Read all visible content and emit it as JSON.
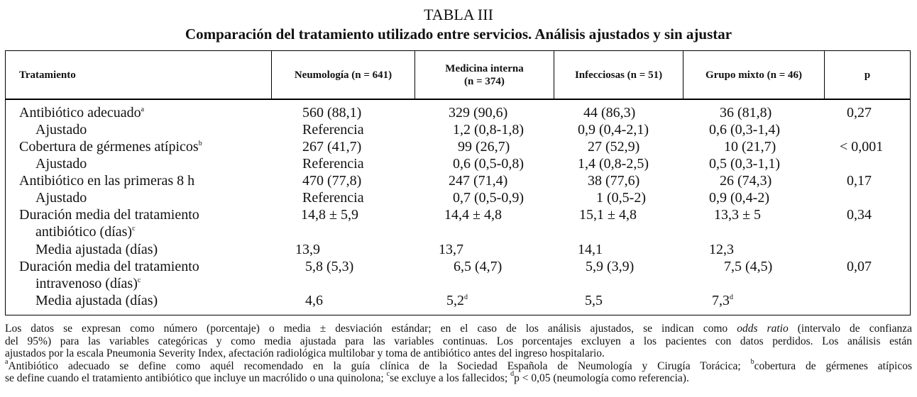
{
  "caption": {
    "number": "TABLA III",
    "title": "Comparación del tratamiento utilizado entre servicios. Análisis ajustados y sin ajustar"
  },
  "headers": {
    "treatment": "Tratamiento",
    "neumologia": "Neumología (n = 641)",
    "medicina_l1": "Medicina interna",
    "medicina_l2": "(n = 374)",
    "infecciosas": "Infecciosas (n = 51)",
    "mixto": "Grupo mixto (n = 46)",
    "p": "p"
  },
  "rows": [
    {
      "label": "Antibiótico adecuado",
      "sup": "a",
      "c1": "560 (88,1)",
      "c2": "329 (90,6)",
      "c3": "44 (86,3)",
      "c4": "36 (81,8)",
      "p": "0,27"
    },
    {
      "label": "Ajustado",
      "c1": "Referencia",
      "c2": "1,2 (0,8-1,8)",
      "c3": "0,9 (0,4-2,1)",
      "c4": "0,6 (0,3-1,4)",
      "p": ""
    },
    {
      "label": "Cobertura de gérmenes atípicos",
      "sup": "b",
      "c1": "267 (41,7)",
      "c2": "99 (26,7)",
      "c3": "27 (52,9)",
      "c4": "10 (21,7)",
      "p": "< 0,001"
    },
    {
      "label": "Ajustado",
      "c1": "Referencia",
      "c2": "0,6 (0,5-0,8)",
      "c3": "1,4 (0,8-2,5)",
      "c4": "0,5 (0,3-1,1)",
      "p": ""
    },
    {
      "label": "Antibiótico en las primeras 8 h",
      "c1": "470 (77,8)",
      "c2": "247 (71,4)",
      "c3": "38 (77,6)",
      "c4": "26 (74,3)",
      "p": "0,17"
    },
    {
      "label": "Ajustado",
      "c1": "Referencia",
      "c2": "0,7 (0,5-0,9)",
      "c3": "1 (0,5-2)",
      "c4": "0,9 (0,4-2)",
      "p": ""
    },
    {
      "label": "Duración media del tratamiento",
      "label2": "antibiótico (días)",
      "sup": "c",
      "c1": "14,8 ± 5,9",
      "c2": "14,4 ± 4,8",
      "c3": "15,1 ± 4,8",
      "c4": "13,3 ± 5",
      "p": "0,34"
    },
    {
      "label": "Media ajustada (días)",
      "c1": "13,9",
      "c2": "13,7",
      "c3": "14,1",
      "c4": "12,3",
      "p": ""
    },
    {
      "label": "Duración media del tratamiento",
      "label2": "intravenoso (días)",
      "sup": "c",
      "c1": "5,8 (5,3)",
      "c2": "6,5 (4,7)",
      "c3": "5,9 (3,9)",
      "c4": "7,5 (4,5)",
      "p": "0,07"
    },
    {
      "label": "Media ajustada (días)",
      "c1": "4,6",
      "c2": "5,2",
      "c2sup": "d",
      "c3": "5,5",
      "c4": "7,3",
      "c4sup": "d",
      "p": ""
    }
  ],
  "footer": {
    "note1a": "Los datos se expresan como número (porcentaje) o media ± desviación estándar; en el caso de los análisis ajustados, se indican como ",
    "note1b": "odds ratio",
    "note1c": " (intervalo de confianza",
    "note2": "del 95%) para las variables categóricas y como media ajustada para las variables continuas. Los porcentajes excluyen a los pacientes con datos perdidos. Los análisis están",
    "note3": "ajustados por la escala Pneumonia Severity Index, afectación radiológica multilobar y toma de antibiótico antes del ingreso hospitalario.",
    "sup_a": "a",
    "fn_a": "Antibiótico adecuado se define como aquél recomendado en la guía clínica de la Sociedad Española de Neumología y Cirugía Torácica; ",
    "sup_b": "b",
    "fn_b": "cobertura de gérmenes atípicos",
    "fn_b2": "se define cuando el tratamiento antibiótico que incluye un macrólido o una quinolona; ",
    "sup_c": "c",
    "fn_c": "se excluye a los fallecidos; ",
    "sup_d": "d",
    "fn_d": "p < 0,05 (neumología como referencia)."
  }
}
